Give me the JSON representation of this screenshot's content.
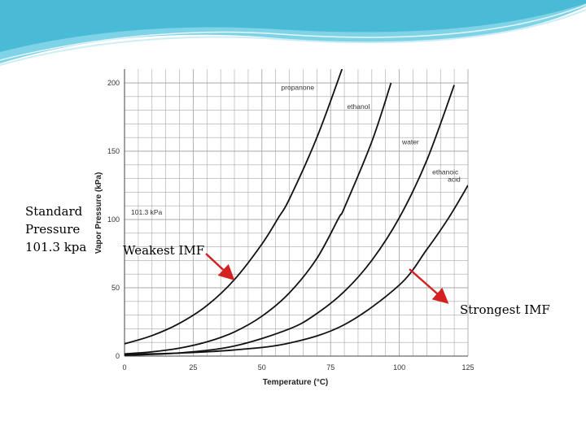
{
  "banner": {
    "colors": [
      "#1fa7c9",
      "#7fd3e6",
      "#cdeef6",
      "#ffffff"
    ]
  },
  "side_label": {
    "line1": "Standard",
    "line2": "Pressure",
    "line3": "101.3 kpa"
  },
  "annotations": {
    "weakest": "Weakest IMF",
    "strongest": "Strongest IMF",
    "arrow_color": "#d42020"
  },
  "chart_data": {
    "type": "line",
    "xlabel": "Temperature (°C)",
    "ylabel": "Vapor Pressure (kPa)",
    "xlim": [
      0,
      125
    ],
    "ylim": [
      0,
      200
    ],
    "x_ticks": [
      "0",
      "25",
      "50",
      "75",
      "100",
      "125"
    ],
    "y_ticks": [
      "0",
      "50",
      "100",
      "150",
      "200"
    ],
    "grid": true,
    "reference_line": {
      "label": "101.3 kPa",
      "y": 101.3
    },
    "series": [
      {
        "name": "propanone",
        "x": [
          0,
          10,
          20,
          30,
          40,
          50,
          56,
          60,
          70,
          80,
          85
        ],
        "y": [
          9,
          15,
          24,
          37,
          56,
          82,
          101.3,
          115,
          160,
          215,
          246
        ]
      },
      {
        "name": "ethanol",
        "x": [
          0,
          10,
          20,
          30,
          40,
          50,
          60,
          70,
          78,
          80,
          90,
          97
        ],
        "y": [
          1.6,
          3.1,
          5.8,
          10.4,
          17.7,
          29.2,
          46.3,
          71.5,
          101.3,
          108.5,
          157,
          200
        ]
      },
      {
        "name": "water",
        "x": [
          0,
          20,
          40,
          60,
          70,
          80,
          90,
          100,
          110,
          120
        ],
        "y": [
          0.6,
          2.3,
          7.4,
          19.9,
          31.2,
          47.3,
          70.1,
          101.3,
          143.3,
          198.5
        ]
      },
      {
        "name": "ethanoic acid",
        "x": [
          0,
          20,
          40,
          60,
          80,
          100,
          110,
          118,
          125
        ],
        "y": [
          1.2,
          2.2,
          4.5,
          9.5,
          23,
          52,
          78,
          101.3,
          125
        ]
      }
    ]
  }
}
